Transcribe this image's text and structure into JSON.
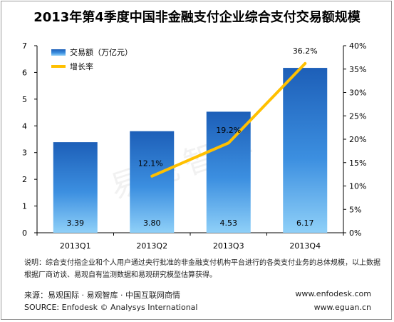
{
  "chart_data": {
    "type": "bar",
    "title": "2013年第4季度中国非金融支付企业综合支付交易额规模",
    "categories": [
      "2013Q1",
      "2013Q2",
      "2013Q3",
      "2013Q4"
    ],
    "series": [
      {
        "name": "交易额（万亿元）",
        "type": "bar",
        "axis": "left",
        "values": [
          3.39,
          3.8,
          4.53,
          6.17
        ],
        "value_labels": [
          "3.39",
          "3.80",
          "4.53",
          "6.17"
        ],
        "color": "#1f6fc6"
      },
      {
        "name": "增长率",
        "type": "line",
        "axis": "right",
        "values": [
          null,
          12.1,
          19.2,
          36.2
        ],
        "value_labels": [
          "",
          "12.1%",
          "19.2%",
          "36.2%"
        ],
        "color": "#ffc000"
      }
    ],
    "y_left": {
      "ylim": [
        0,
        7
      ],
      "ticks": [
        "0",
        "1",
        "2",
        "3",
        "4",
        "5",
        "6",
        "7"
      ]
    },
    "y_right": {
      "ylim": [
        0,
        40
      ],
      "ticks": [
        "0%",
        "5%",
        "10%",
        "15%",
        "20%",
        "25%",
        "30%",
        "35%",
        "40%"
      ]
    },
    "grid": false,
    "legend_position": "top-left"
  },
  "watermark": "易观智库",
  "note": "说明：综合支付指企业和个人用户通过央行批准的非金融支付机构平台进行的各类支付业务的总体规模，以上数据根据厂商访谈、易观自有监测数据和易观研究模型估算获得。",
  "source_cn": "来源：易观国际 · 易观智库 · 中国互联网商情",
  "source_en": "SOURCE: Enfodesk © Analysys International",
  "url1": "www.enfodesk.com",
  "url2": "www.eguan.cn"
}
